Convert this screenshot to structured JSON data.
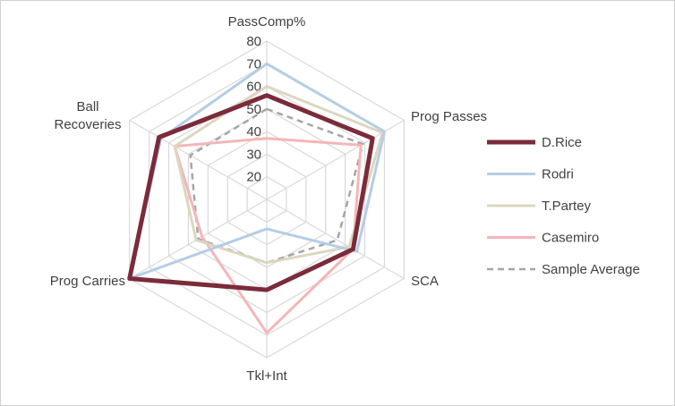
{
  "chart_data": {
    "type": "radar",
    "axes": [
      "PassComp%",
      "Prog Passes",
      "SCA",
      "Tkl+Int",
      "Prog Carries",
      "Ball Recoveries"
    ],
    "axis_label_lines": [
      [
        "PassComp%"
      ],
      [
        "Prog Passes"
      ],
      [
        "SCA"
      ],
      [
        "Tkl+Int"
      ],
      [
        "Prog Carries"
      ],
      [
        "Ball",
        "Recoveries"
      ]
    ],
    "ticks": [
      20,
      30,
      40,
      50,
      60,
      70,
      80
    ],
    "range": [
      10,
      80
    ],
    "legend_position": "right",
    "series": [
      {
        "name": "D.Rice",
        "values": [
          56,
          64,
          54,
          50,
          80,
          65
        ],
        "color": "#7b2b3a",
        "width": 5,
        "dash": ""
      },
      {
        "name": "Rodri",
        "values": [
          70,
          70,
          56,
          23,
          80,
          64
        ],
        "color": "#b4cde6",
        "width": 3,
        "dash": ""
      },
      {
        "name": "T.Partey",
        "values": [
          60,
          69,
          52,
          38,
          46,
          57
        ],
        "color": "#ddd6c0",
        "width": 3,
        "dash": ""
      },
      {
        "name": "Casemiro",
        "values": [
          37,
          58,
          54,
          69,
          43,
          57
        ],
        "color": "#f4b6b8",
        "width": 3,
        "dash": ""
      },
      {
        "name": "Sample Average",
        "values": [
          50,
          59,
          46,
          38,
          45,
          49
        ],
        "color": "#a6a6a6",
        "width": 2.5,
        "dash": "7,5"
      }
    ]
  }
}
